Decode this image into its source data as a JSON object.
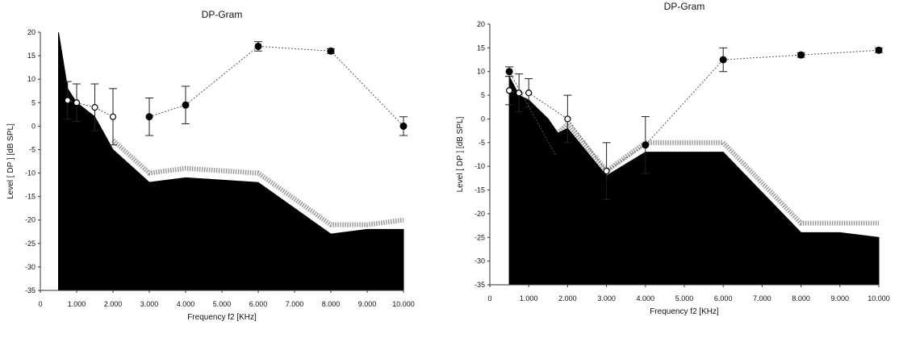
{
  "chart_data": [
    {
      "type": "area",
      "title": "DP-Gram",
      "xlabel": "Frequency f2 [KHz]",
      "ylabel": "Level [ DP ] [dB SPL]",
      "xlim": [
        0,
        10000
      ],
      "ylim": [
        -35,
        20
      ],
      "xticks": [
        0,
        1000,
        2000,
        3000,
        4000,
        5000,
        6000,
        7000,
        8000,
        9000,
        10000
      ],
      "xtick_labels": [
        "0",
        "1.000",
        "2.000",
        "3.000",
        "4.000",
        "5.000",
        "6.000",
        "7.000",
        "8.000",
        "9.000",
        "10.000"
      ],
      "yticks": [
        20,
        15,
        10,
        5,
        0,
        -5,
        -10,
        -15,
        -20,
        -25,
        -30,
        -35
      ],
      "ytick_labels": [
        "20",
        "15",
        "10",
        "5",
        "0",
        "-5",
        "-10",
        "-15",
        "-20",
        "-25",
        "-30",
        "-35"
      ],
      "grid": false,
      "noise_floor": {
        "x": [
          500,
          500,
          750,
          1000,
          1500,
          2000,
          3000,
          4000,
          6000,
          8000,
          9000,
          10000,
          10000
        ],
        "y": [
          -40,
          20,
          8,
          5,
          2,
          -5,
          -12,
          -11,
          -12,
          -23,
          -22,
          -22,
          -40
        ]
      },
      "noise_floor_upper": {
        "x": [
          2000,
          3000,
          4000,
          6000,
          8000,
          9000,
          10000
        ],
        "y": [
          -3,
          -10,
          -9,
          -10,
          -21,
          -21,
          -20
        ]
      },
      "series": [
        {
          "marker": "open",
          "x": [
            750,
            1000,
            1500,
            2000
          ],
          "y": [
            5.5,
            5,
            4,
            2
          ],
          "err": [
            4,
            4,
            5,
            6
          ]
        },
        {
          "marker": "filled",
          "x": [
            3000,
            4000,
            6000,
            8000,
            10000
          ],
          "y": [
            2,
            4.5,
            17,
            16,
            0
          ],
          "err": [
            4,
            4,
            1,
            0.5,
            2
          ]
        }
      ]
    },
    {
      "type": "area",
      "title": "DP-Gram",
      "xlabel": "Frequency f2 [KHz]",
      "ylabel": "Level [ DP ] [dB SPL]",
      "xlim": [
        0,
        10000
      ],
      "ylim": [
        -35,
        20
      ],
      "xticks": [
        0,
        1000,
        2000,
        3000,
        4000,
        5000,
        6000,
        7000,
        8000,
        9000,
        10000
      ],
      "xtick_labels": [
        "0",
        "1.000",
        "2.000",
        "3.000",
        "4.000",
        "5.000",
        "6.000",
        "7.000",
        "8.000",
        "9.000",
        "10.000"
      ],
      "yticks": [
        20,
        15,
        10,
        5,
        0,
        -5,
        -10,
        -15,
        -20,
        -25,
        -30,
        -35
      ],
      "ytick_labels": [
        "20",
        "15",
        "10",
        "5",
        "0",
        "-5",
        "-10",
        "-15",
        "-20",
        "-25",
        "-30",
        "-35"
      ],
      "grid": false,
      "noise_floor": {
        "x": [
          500,
          500,
          750,
          1000,
          1500,
          1750,
          2000,
          3000,
          4000,
          6000,
          8000,
          9000,
          10000,
          10000
        ],
        "y": [
          -40,
          9,
          5,
          4,
          0,
          -3,
          -2,
          -12,
          -7,
          -7,
          -24,
          -24,
          -25,
          -40
        ]
      },
      "noise_floor_upper": {
        "x": [
          1750,
          2000,
          3000,
          4000,
          6000,
          8000,
          9000,
          10000
        ],
        "y": [
          -3,
          -1,
          -11,
          -5,
          -5,
          -22,
          -22,
          -22
        ]
      },
      "series": [
        {
          "marker": "open",
          "x": [
            500,
            750,
            1000,
            2000,
            3000,
            4000
          ],
          "y": [
            6,
            5.5,
            5.5,
            0,
            -11,
            -5.5
          ],
          "err": [
            3,
            4,
            3,
            5,
            6,
            6
          ]
        },
        {
          "marker": "filled",
          "x": [
            500,
            1750
          ],
          "y": [
            10,
            -8.5
          ],
          "err": [
            1,
            0
          ]
        },
        {
          "marker": "filled",
          "x": [
            4000,
            6000,
            8000,
            10000
          ],
          "y": [
            -5.5,
            12.5,
            13.5,
            14.5
          ],
          "err": [
            0,
            2.5,
            0.5,
            0.5
          ]
        }
      ]
    }
  ]
}
